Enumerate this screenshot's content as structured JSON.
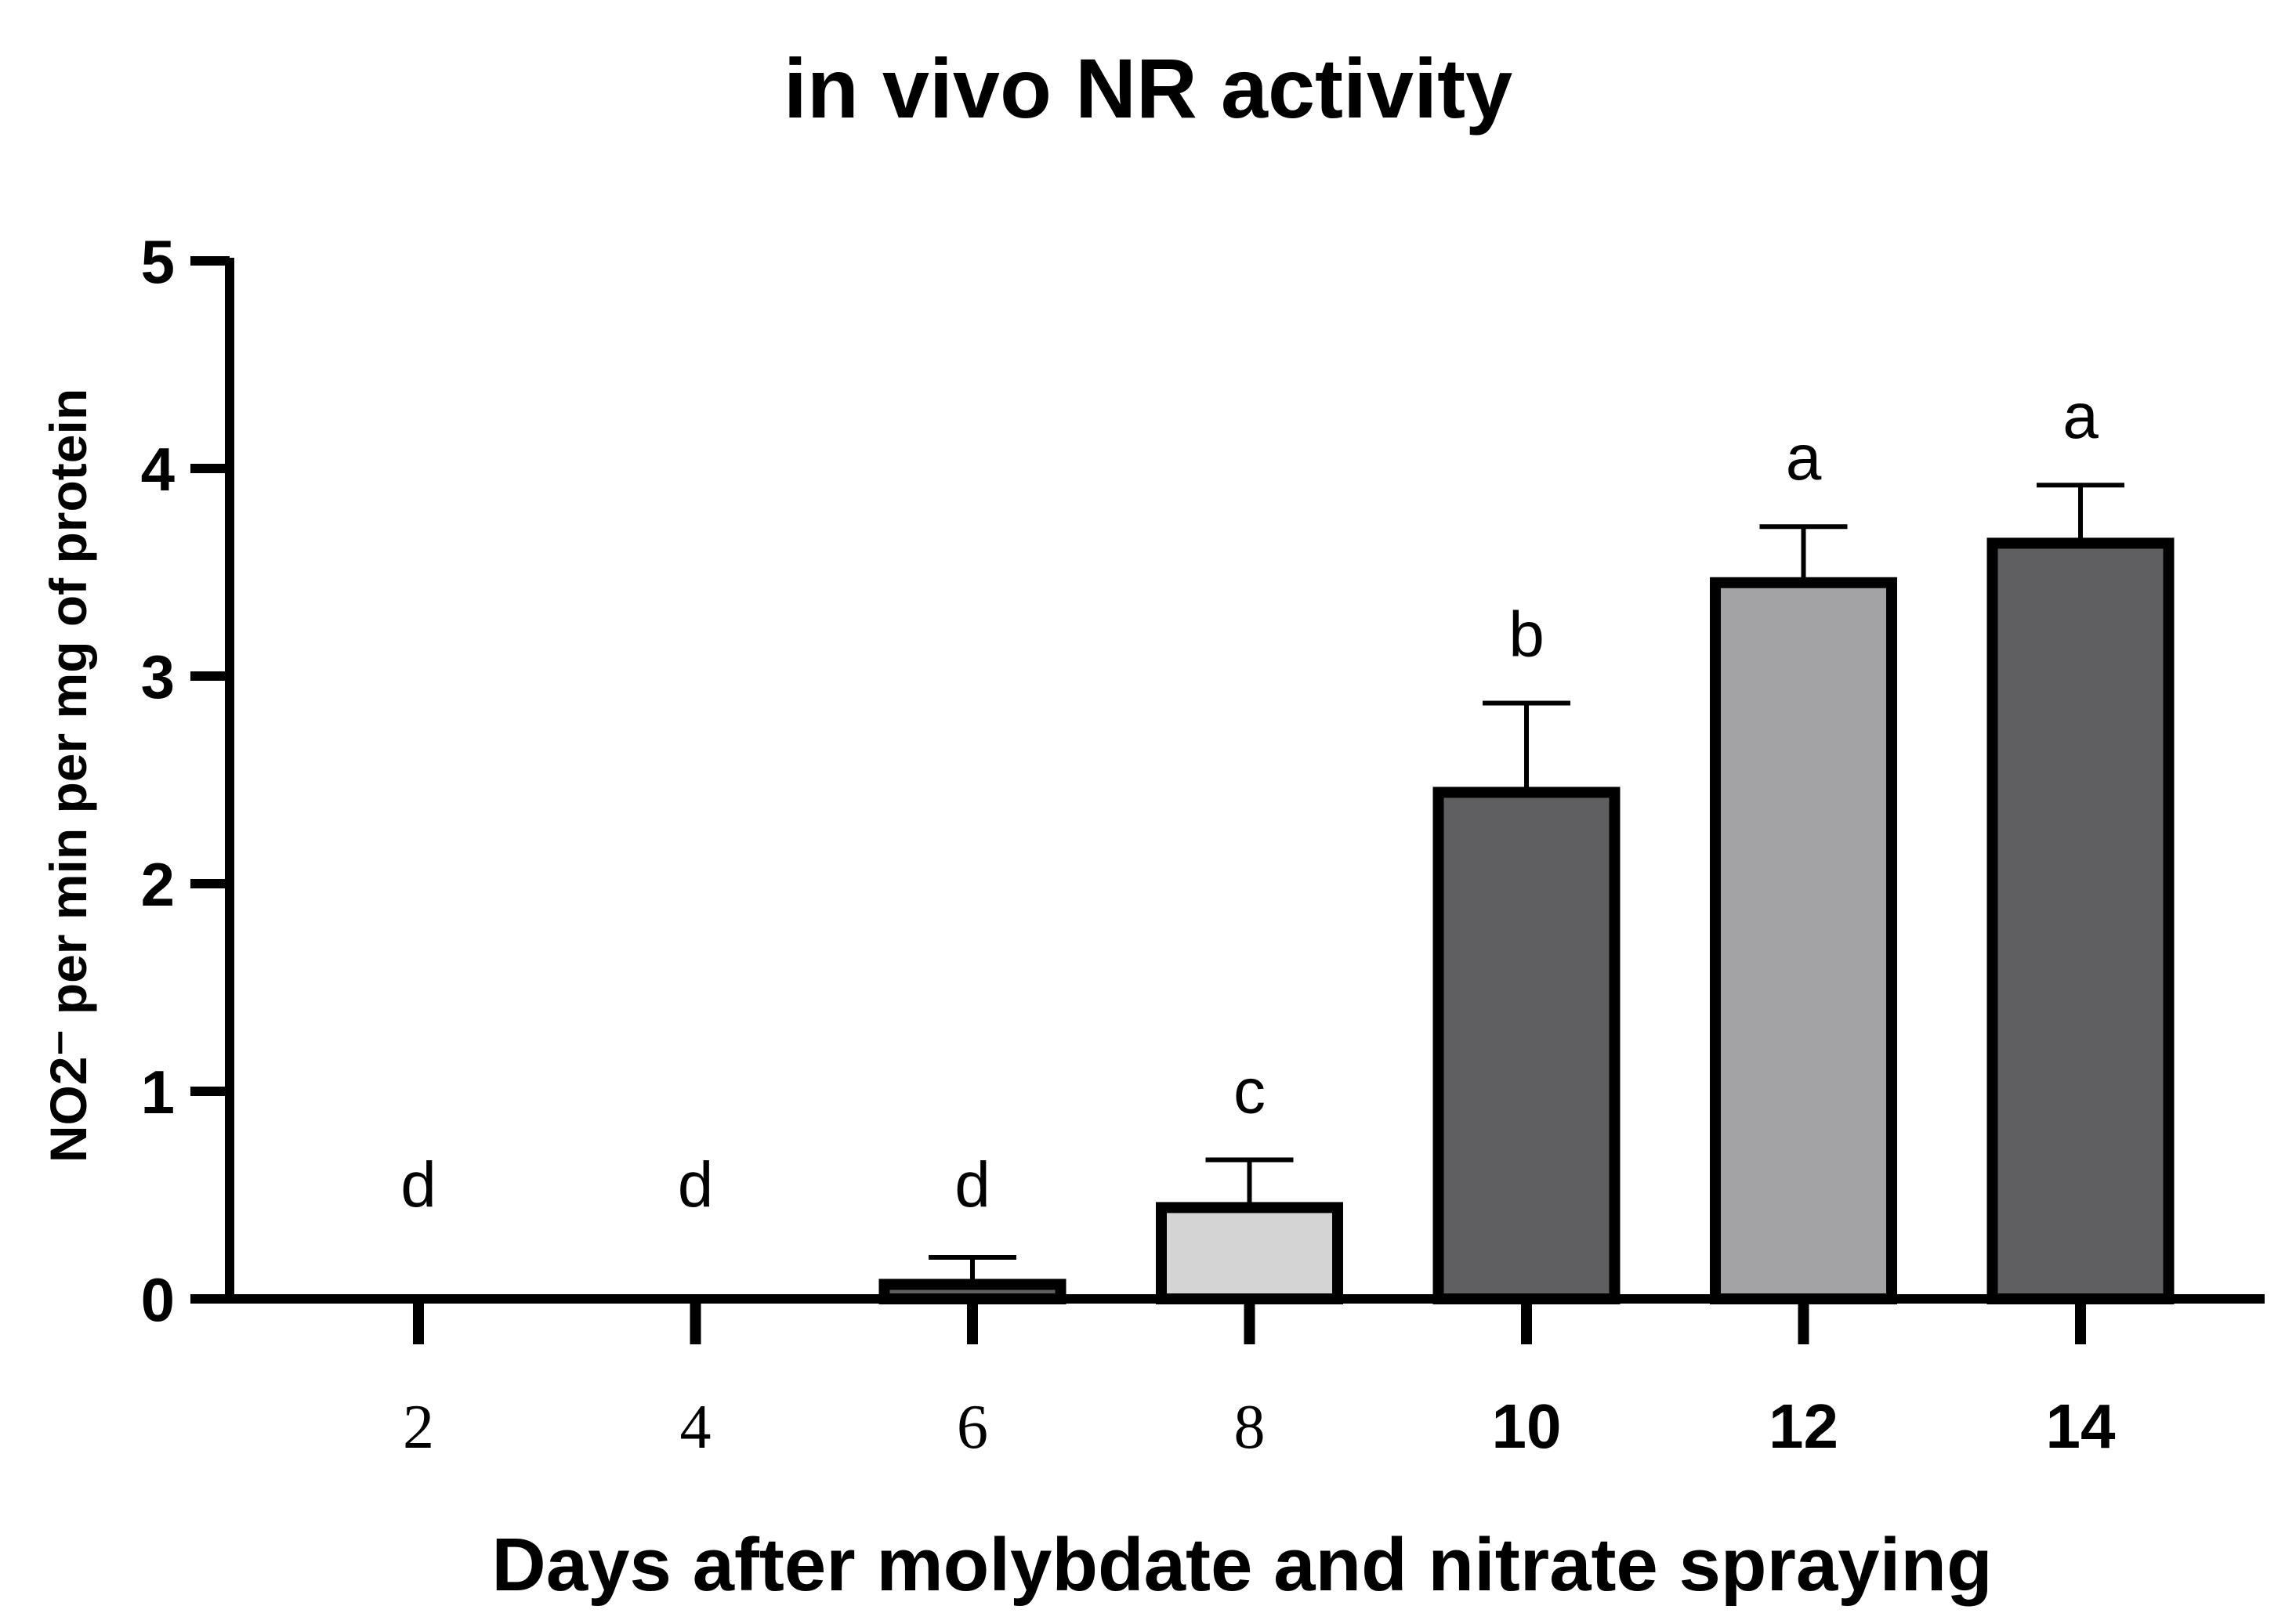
{
  "chart_data": {
    "type": "bar",
    "title": "in vivo NR activity",
    "xlabel": "Days after molybdate and nitrate spraying",
    "ylabel": "NO2⁻ per min per mg of protein",
    "ylim": [
      0,
      5
    ],
    "yticks": [
      "0",
      "1",
      "2",
      "3",
      "4",
      "5"
    ],
    "categories": [
      "2",
      "4",
      "6",
      "8",
      "10",
      "12",
      "14"
    ],
    "category_bold": [
      false,
      false,
      false,
      false,
      true,
      true,
      true
    ],
    "values": [
      0,
      0,
      0.07,
      0.44,
      2.44,
      3.45,
      3.64
    ],
    "errors": [
      0,
      0,
      0.13,
      0.23,
      0.43,
      0.27,
      0.28
    ],
    "significance": [
      "d",
      "d",
      "d",
      "c",
      "b",
      "a",
      "a"
    ],
    "bar_colors": [
      "#5f5f61",
      "#5f5f61",
      "#5f5f61",
      "#d4d4d4",
      "#5f5f61",
      "#a3a3a5",
      "#5f5f61"
    ],
    "edge_color": "#000000",
    "grid": false,
    "legend": "none"
  }
}
